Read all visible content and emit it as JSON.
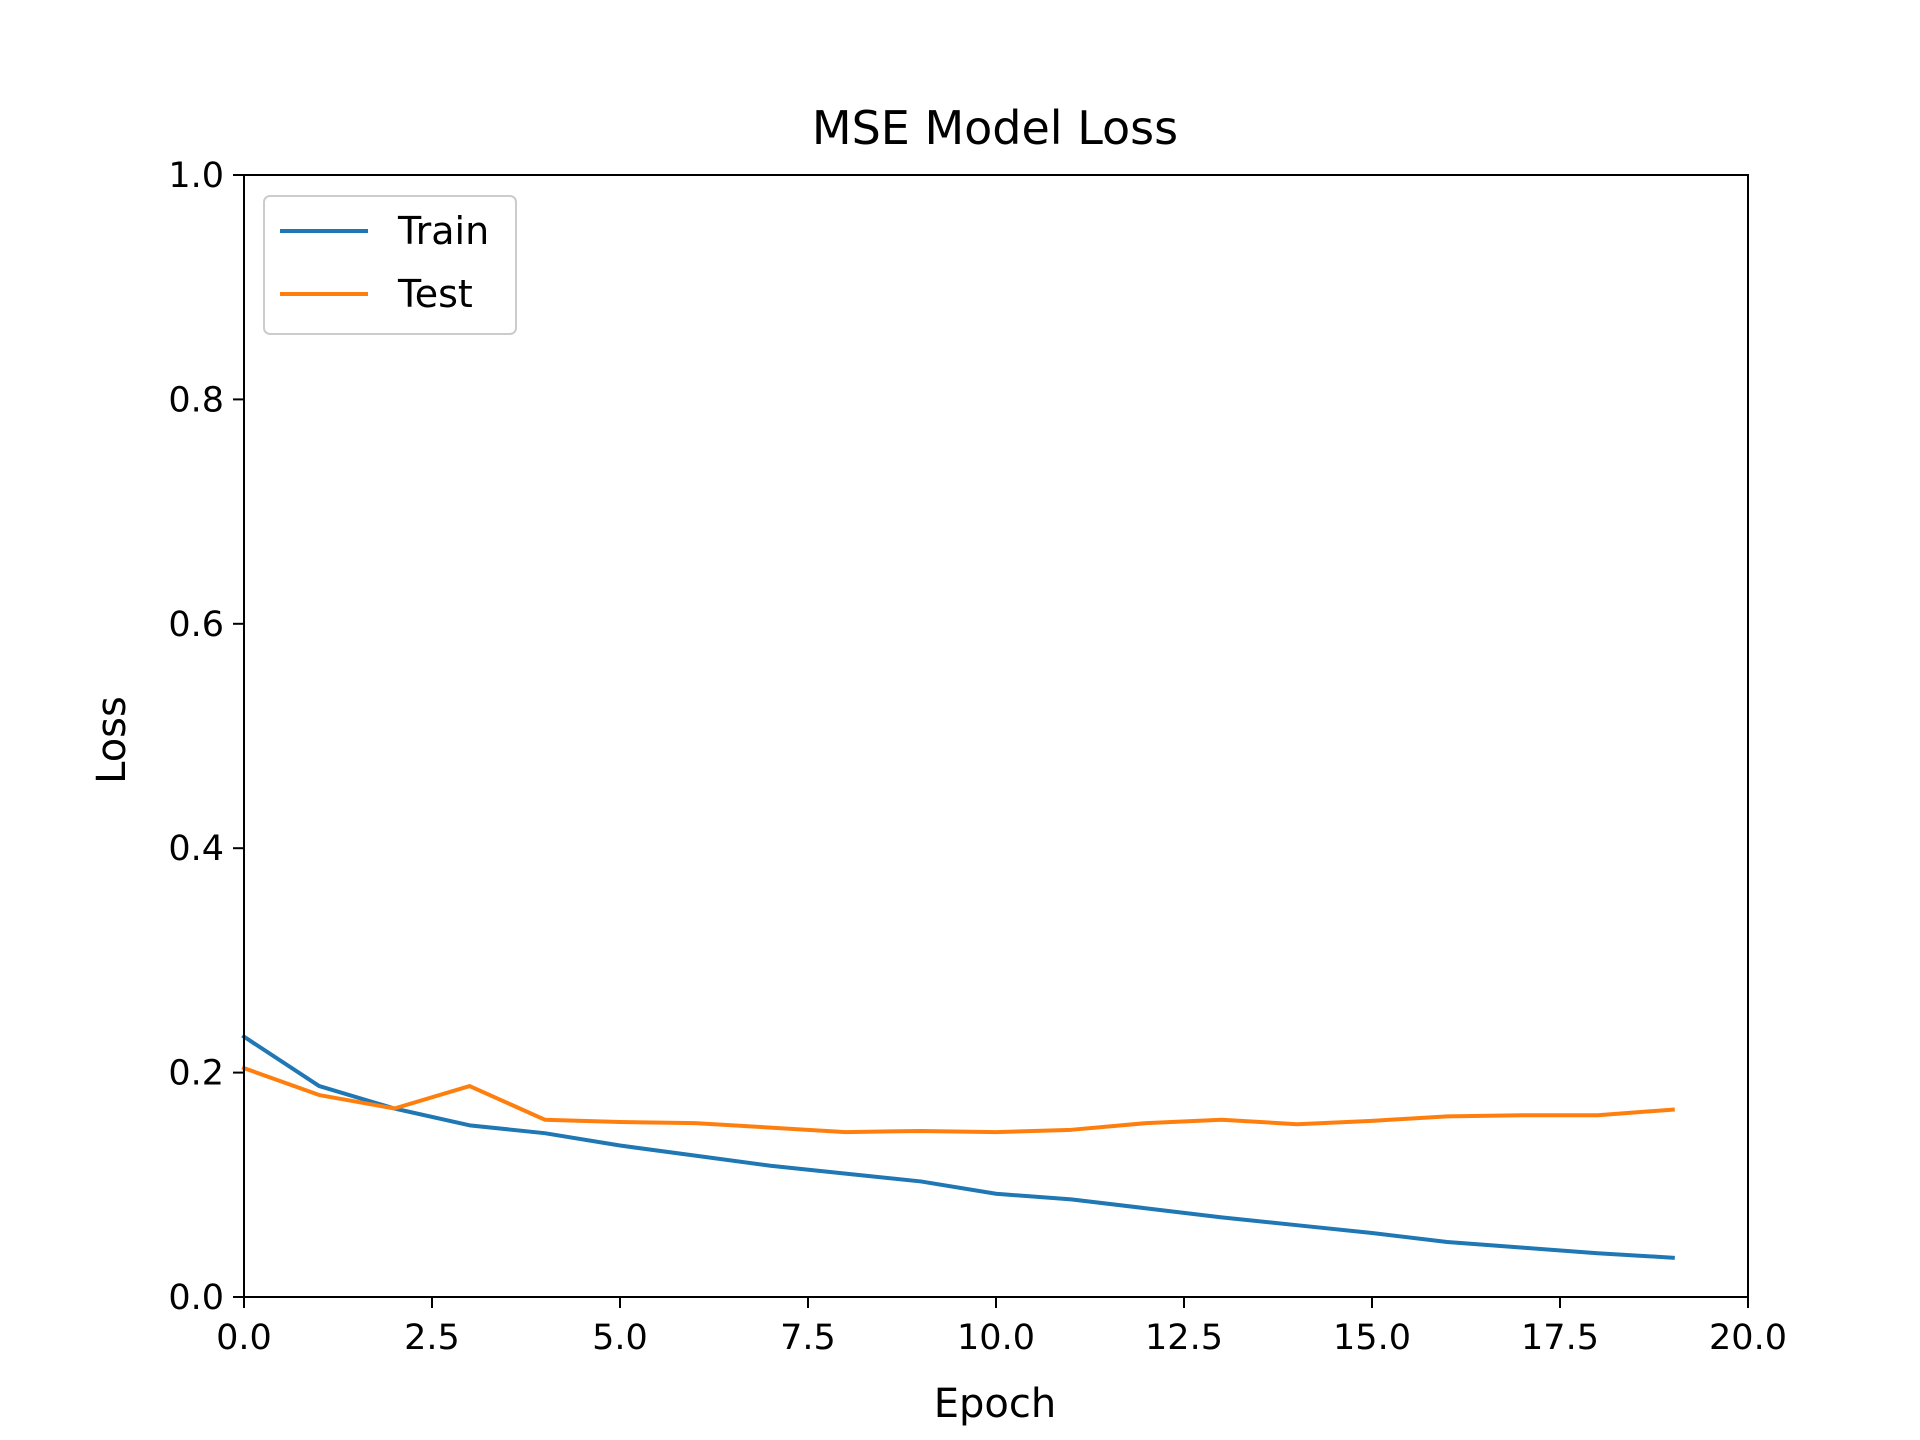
{
  "chart_data": {
    "type": "line",
    "title": "MSE Model Loss",
    "xlabel": "Epoch",
    "ylabel": "Loss",
    "xlim": [
      0,
      20
    ],
    "ylim": [
      0,
      1
    ],
    "xticks": [
      0,
      2.5,
      5,
      7.5,
      10,
      12.5,
      15,
      17.5,
      20
    ],
    "xtick_labels": [
      "0.0",
      "2.5",
      "5.0",
      "7.5",
      "10.0",
      "12.5",
      "15.0",
      "17.5",
      "20.0"
    ],
    "yticks": [
      0,
      0.2,
      0.4,
      0.6,
      0.8,
      1
    ],
    "ytick_labels": [
      "0.0",
      "0.2",
      "0.4",
      "0.6",
      "0.8",
      "1.0"
    ],
    "grid": false,
    "legend_position": "upper-left",
    "x": [
      0,
      1,
      2,
      3,
      4,
      5,
      6,
      7,
      8,
      9,
      10,
      11,
      12,
      13,
      14,
      15,
      16,
      17,
      18,
      19
    ],
    "series": [
      {
        "name": "Train",
        "color": "#1f77b4",
        "values": [
          0.232,
          0.188,
          0.168,
          0.153,
          0.146,
          0.135,
          0.126,
          0.117,
          0.11,
          0.103,
          0.092,
          0.087,
          0.079,
          0.071,
          0.064,
          0.057,
          0.049,
          0.044,
          0.039,
          0.035
        ]
      },
      {
        "name": "Test",
        "color": "#ff7f0e",
        "values": [
          0.204,
          0.18,
          0.168,
          0.188,
          0.158,
          0.156,
          0.155,
          0.151,
          0.147,
          0.148,
          0.147,
          0.149,
          0.155,
          0.158,
          0.154,
          0.157,
          0.161,
          0.162,
          0.162,
          0.167
        ]
      }
    ]
  }
}
